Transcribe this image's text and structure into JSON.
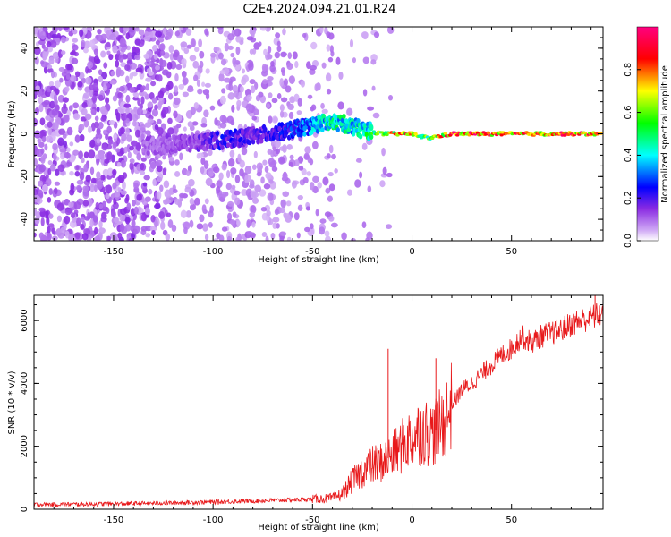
{
  "title": "C2E4.2024.094.21.01.R24",
  "chart_data": [
    {
      "type": "heatmap",
      "xlabel": "Height of straight line (km)",
      "ylabel": "Frequency (Hz)",
      "xlim": [
        -190,
        96
      ],
      "ylim": [
        -50,
        50
      ],
      "xticks": [
        -150,
        -100,
        -50,
        0,
        50
      ],
      "yticks": [
        -40,
        -20,
        0,
        20,
        40
      ],
      "colorbar": {
        "label": "Normalized spectral amplitude",
        "range": [
          0,
          1
        ],
        "ticks": [
          "0.0",
          "0.2",
          "0.4",
          "0.6",
          "0.8"
        ],
        "colormap": [
          "#ffffff",
          "#8a2be2",
          "#0000ff",
          "#00ffff",
          "#00ff00",
          "#ffff00",
          "#ff0000",
          "#ff00aa"
        ]
      },
      "ridge": [
        {
          "x": -130,
          "y": -6,
          "amp": 0.12
        },
        {
          "x": -110,
          "y": -4,
          "amp": 0.15
        },
        {
          "x": -95,
          "y": -3,
          "amp": 0.25
        },
        {
          "x": -80,
          "y": -1,
          "amp": 0.2
        },
        {
          "x": -65,
          "y": 1,
          "amp": 0.25
        },
        {
          "x": -55,
          "y": 3,
          "amp": 0.35
        },
        {
          "x": -45,
          "y": 5,
          "amp": 0.45
        },
        {
          "x": -35,
          "y": 5,
          "amp": 0.5
        },
        {
          "x": -25,
          "y": 2,
          "amp": 0.45
        },
        {
          "x": -15,
          "y": 0,
          "amp": 0.7
        },
        {
          "x": 0,
          "y": 0,
          "amp": 0.9
        },
        {
          "x": 8,
          "y": -2,
          "amp": 0.6
        },
        {
          "x": 20,
          "y": 0,
          "amp": 0.95
        },
        {
          "x": 50,
          "y": 0,
          "amp": 0.95
        },
        {
          "x": 80,
          "y": 0,
          "amp": 0.9
        },
        {
          "x": 95,
          "y": 0,
          "amp": 0.85
        }
      ]
    },
    {
      "type": "line",
      "xlabel": "Height of straight line (km)",
      "ylabel": "SNR (10 * v/v)",
      "xlim": [
        -190,
        96
      ],
      "ylim": [
        0,
        6800
      ],
      "xticks": [
        -150,
        -100,
        -50,
        0,
        50
      ],
      "yticks": [
        0,
        2000,
        4000,
        6000
      ],
      "color": "#e8191b",
      "x": [
        -190,
        -150,
        -100,
        -60,
        -50,
        -40,
        -35,
        -30,
        -25,
        -20,
        -15,
        -10,
        -5,
        0,
        5,
        10,
        15,
        20,
        25,
        30,
        35,
        40,
        45,
        50,
        55,
        60,
        65,
        70,
        75,
        80,
        85,
        90,
        95
      ],
      "values": [
        150,
        170,
        230,
        300,
        320,
        350,
        500,
        900,
        1200,
        1400,
        1500,
        1700,
        2000,
        2300,
        2500,
        2400,
        2700,
        3300,
        3800,
        4000,
        4300,
        4600,
        4900,
        5100,
        5500,
        5300,
        5500,
        5600,
        5700,
        5900,
        6000,
        6100,
        6200
      ],
      "spikes": [
        {
          "x": -12,
          "y": 5100
        },
        {
          "x": 12,
          "y": 4800
        },
        {
          "x": 92,
          "y": 6800
        }
      ]
    }
  ]
}
